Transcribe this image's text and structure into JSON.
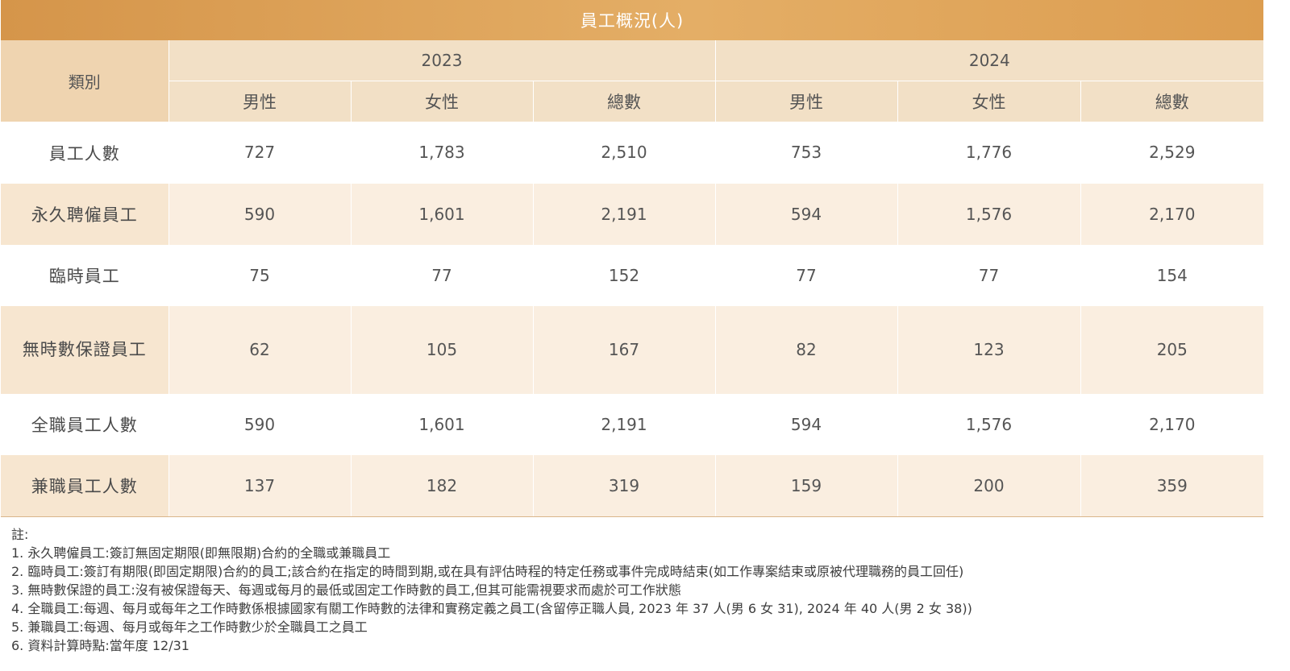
{
  "table": {
    "title": "員工概況(人)",
    "category_header": "類別",
    "years": [
      "2023",
      "2024"
    ],
    "sub_headers": [
      "男性",
      "女性",
      "總數",
      "男性",
      "女性",
      "總數"
    ],
    "rows": [
      {
        "label": "員工人數",
        "values": [
          "727",
          "1,783",
          "2,510",
          "753",
          "1,776",
          "2,529"
        ]
      },
      {
        "label": "永久聘僱員工",
        "values": [
          "590",
          "1,601",
          "2,191",
          "594",
          "1,576",
          "2,170"
        ]
      },
      {
        "label": "臨時員工",
        "values": [
          "75",
          "77",
          "152",
          "77",
          "77",
          "154"
        ]
      },
      {
        "label": "無時數保證員工",
        "values": [
          "62",
          "105",
          "167",
          "82",
          "123",
          "205"
        ]
      },
      {
        "label": "全職員工人數",
        "values": [
          "590",
          "1,601",
          "2,191",
          "594",
          "1,576",
          "2,170"
        ]
      },
      {
        "label": "兼職員工人數",
        "values": [
          "137",
          "182",
          "319",
          "159",
          "200",
          "359"
        ]
      }
    ]
  },
  "notes": {
    "heading": "註:",
    "items": [
      "1. 永久聘僱員工:簽訂無固定期限(即無限期)合約的全職或兼職員工",
      "2. 臨時員工:簽訂有期限(即固定期限)合約的員工;該合約在指定的時間到期,或在具有評估時程的特定任務或事件完成時結束(如工作專案結束或原被代理職務的員工回任)",
      "3. 無時數保證的員工:沒有被保證每天、每週或每月的最低或固定工作時數的員工,但其可能需視要求而處於可工作狀態",
      "4. 全職員工:每週、每月或每年之工作時數係根據國家有關工作時數的法律和實務定義之員工(含留停正職人員, 2023 年 37 人(男 6 女 31), 2024 年 40 人(男 2 女 38))",
      "5. 兼職員工:每週、每月或每年之工作時數少於全職員工之員工",
      "6. 資料計算時點:當年度 12/31"
    ]
  },
  "colors": {
    "title_bar": "#dc9d50",
    "header_bg": "#f2e0c6",
    "category_header_bg": "#efd4b0",
    "stripe_bg": "#faeee0"
  }
}
